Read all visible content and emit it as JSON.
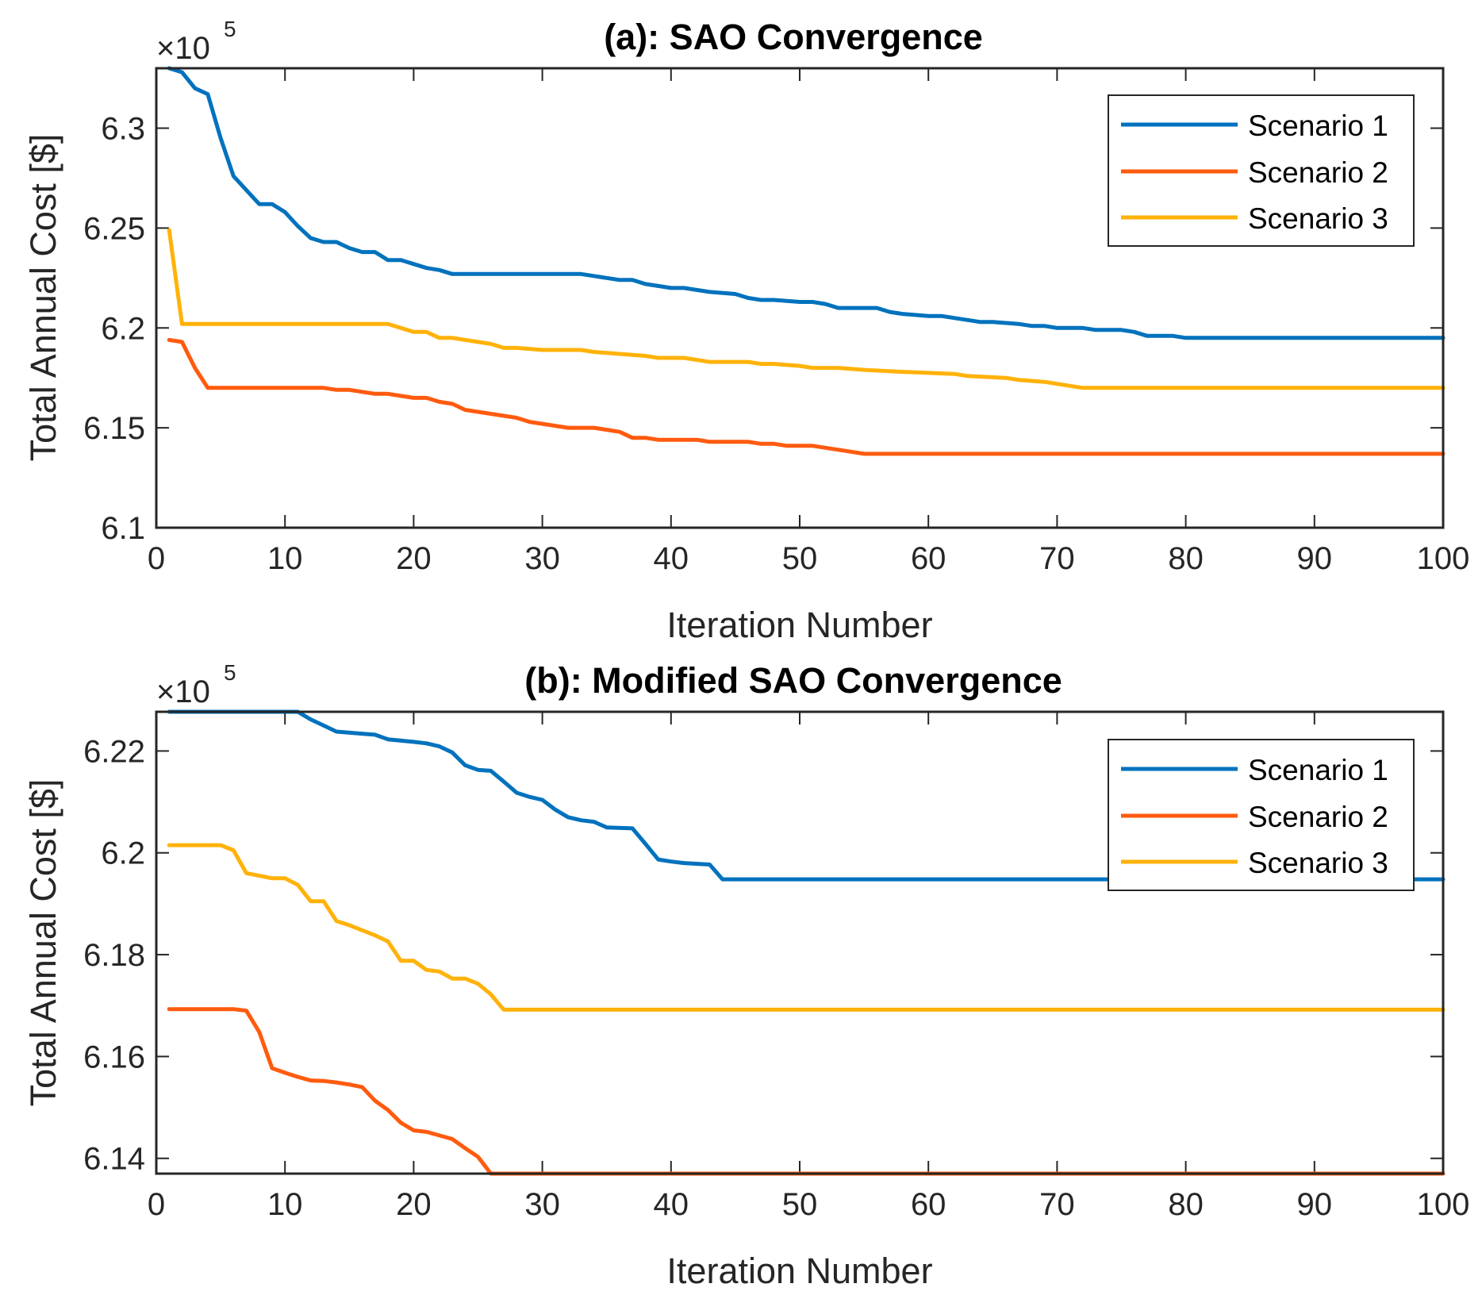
{
  "colors": {
    "scenario1": "#0072BD",
    "scenario2": "#FF5B0F",
    "scenario3": "#FFB20A",
    "axis": "#262626"
  },
  "chart_data": [
    {
      "type": "line",
      "title": "(a): SAO Convergence",
      "xlabel": "Iteration Number",
      "ylabel": "Total Annual Cost [$]",
      "exponent_base": "×10",
      "exponent_power": "5",
      "xlim": [
        0,
        100
      ],
      "ylim": [
        6.1,
        6.33
      ],
      "xticks": [
        0,
        10,
        20,
        30,
        40,
        50,
        60,
        70,
        80,
        90,
        100
      ],
      "xtick_labels": [
        "0",
        "10",
        "20",
        "30",
        "40",
        "50",
        "60",
        "70",
        "80",
        "90",
        "100"
      ],
      "yticks": [
        6.1,
        6.15,
        6.2,
        6.25,
        6.3
      ],
      "ytick_labels": [
        "6.1",
        "6.15",
        "6.2",
        "6.25",
        "6.3"
      ],
      "legend_location": "top-right",
      "series": [
        {
          "name": "Scenario 1",
          "color_key": "scenario1",
          "points": [
            [
              1,
              6.33
            ],
            [
              2,
              6.328
            ],
            [
              3,
              6.32
            ],
            [
              4,
              6.317
            ],
            [
              5,
              6.295
            ],
            [
              6,
              6.276
            ],
            [
              7,
              6.269
            ],
            [
              8,
              6.262
            ],
            [
              9,
              6.262
            ],
            [
              10,
              6.258
            ],
            [
              11,
              6.251
            ],
            [
              12,
              6.245
            ],
            [
              13,
              6.243
            ],
            [
              14,
              6.243
            ],
            [
              15,
              6.24
            ],
            [
              16,
              6.238
            ],
            [
              17,
              6.238
            ],
            [
              18,
              6.234
            ],
            [
              19,
              6.234
            ],
            [
              20,
              6.232
            ],
            [
              21,
              6.23
            ],
            [
              22,
              6.229
            ],
            [
              23,
              6.227
            ],
            [
              32,
              6.227
            ],
            [
              33,
              6.227
            ],
            [
              34,
              6.226
            ],
            [
              35,
              6.225
            ],
            [
              36,
              6.224
            ],
            [
              37,
              6.224
            ],
            [
              38,
              6.222
            ],
            [
              39,
              6.221
            ],
            [
              40,
              6.22
            ],
            [
              41,
              6.22
            ],
            [
              42,
              6.219
            ],
            [
              43,
              6.218
            ],
            [
              45,
              6.217
            ],
            [
              46,
              6.215
            ],
            [
              47,
              6.214
            ],
            [
              48,
              6.214
            ],
            [
              50,
              6.213
            ],
            [
              51,
              6.213
            ],
            [
              52,
              6.212
            ],
            [
              53,
              6.21
            ],
            [
              56,
              6.21
            ],
            [
              57,
              6.208
            ],
            [
              58,
              6.207
            ],
            [
              60,
              6.206
            ],
            [
              61,
              6.206
            ],
            [
              62,
              6.205
            ],
            [
              63,
              6.204
            ],
            [
              64,
              6.203
            ],
            [
              65,
              6.203
            ],
            [
              67,
              6.202
            ],
            [
              68,
              6.201
            ],
            [
              69,
              6.201
            ],
            [
              70,
              6.2
            ],
            [
              72,
              6.2
            ],
            [
              73,
              6.199
            ],
            [
              75,
              6.199
            ],
            [
              76,
              6.198
            ],
            [
              77,
              6.196
            ],
            [
              78,
              6.196
            ],
            [
              79,
              6.196
            ],
            [
              80,
              6.195
            ],
            [
              100,
              6.195
            ]
          ]
        },
        {
          "name": "Scenario 2",
          "color_key": "scenario2",
          "points": [
            [
              1,
              6.194
            ],
            [
              2,
              6.193
            ],
            [
              3,
              6.18
            ],
            [
              4,
              6.17
            ],
            [
              13,
              6.17
            ],
            [
              14,
              6.169
            ],
            [
              15,
              6.169
            ],
            [
              16,
              6.168
            ],
            [
              17,
              6.167
            ],
            [
              18,
              6.167
            ],
            [
              19,
              6.166
            ],
            [
              20,
              6.165
            ],
            [
              21,
              6.165
            ],
            [
              22,
              6.163
            ],
            [
              23,
              6.162
            ],
            [
              24,
              6.159
            ],
            [
              25,
              6.158
            ],
            [
              26,
              6.157
            ],
            [
              27,
              6.156
            ],
            [
              28,
              6.155
            ],
            [
              29,
              6.153
            ],
            [
              30,
              6.152
            ],
            [
              31,
              6.151
            ],
            [
              32,
              6.15
            ],
            [
              34,
              6.15
            ],
            [
              35,
              6.149
            ],
            [
              36,
              6.148
            ],
            [
              37,
              6.145
            ],
            [
              38,
              6.145
            ],
            [
              39,
              6.144
            ],
            [
              42,
              6.144
            ],
            [
              43,
              6.143
            ],
            [
              46,
              6.143
            ],
            [
              47,
              6.142
            ],
            [
              48,
              6.142
            ],
            [
              49,
              6.141
            ],
            [
              51,
              6.141
            ],
            [
              52,
              6.14
            ],
            [
              53,
              6.139
            ],
            [
              54,
              6.138
            ],
            [
              55,
              6.137
            ],
            [
              57,
              6.137
            ],
            [
              100,
              6.137
            ]
          ]
        },
        {
          "name": "Scenario 3",
          "color_key": "scenario3",
          "points": [
            [
              1,
              6.249
            ],
            [
              2,
              6.202
            ],
            [
              17,
              6.202
            ],
            [
              18,
              6.202
            ],
            [
              19,
              6.2
            ],
            [
              20,
              6.198
            ],
            [
              21,
              6.198
            ],
            [
              22,
              6.195
            ],
            [
              23,
              6.195
            ],
            [
              24,
              6.194
            ],
            [
              25,
              6.193
            ],
            [
              26,
              6.192
            ],
            [
              27,
              6.19
            ],
            [
              28,
              6.19
            ],
            [
              30,
              6.189
            ],
            [
              33,
              6.189
            ],
            [
              34,
              6.188
            ],
            [
              36,
              6.187
            ],
            [
              38,
              6.186
            ],
            [
              39,
              6.185
            ],
            [
              41,
              6.185
            ],
            [
              42,
              6.184
            ],
            [
              43,
              6.183
            ],
            [
              46,
              6.183
            ],
            [
              47,
              6.182
            ],
            [
              48,
              6.182
            ],
            [
              50,
              6.181
            ],
            [
              51,
              6.18
            ],
            [
              53,
              6.18
            ],
            [
              55,
              6.179
            ],
            [
              58,
              6.178
            ],
            [
              62,
              6.177
            ],
            [
              63,
              6.176
            ],
            [
              66,
              6.175
            ],
            [
              67,
              6.174
            ],
            [
              69,
              6.173
            ],
            [
              70,
              6.172
            ],
            [
              71,
              6.171
            ],
            [
              72,
              6.17
            ],
            [
              100,
              6.17
            ]
          ]
        }
      ]
    },
    {
      "type": "line",
      "title": "(b): Modified SAO Convergence",
      "xlabel": "Iteration Number",
      "ylabel": "Total Annual Cost [$]",
      "exponent_base": "×10",
      "exponent_power": "5",
      "xlim": [
        0,
        100
      ],
      "ylim": [
        6.137,
        6.2277
      ],
      "xticks": [
        0,
        10,
        20,
        30,
        40,
        50,
        60,
        70,
        80,
        90,
        100
      ],
      "xtick_labels": [
        "0",
        "10",
        "20",
        "30",
        "40",
        "50",
        "60",
        "70",
        "80",
        "90",
        "100"
      ],
      "yticks": [
        6.14,
        6.16,
        6.18,
        6.2,
        6.22
      ],
      "ytick_labels": [
        "6.14",
        "6.16",
        "6.18",
        "6.2",
        "6.22"
      ],
      "legend_location": "top-right",
      "series": [
        {
          "name": "Scenario 1",
          "color_key": "scenario1",
          "points": [
            [
              1,
              6.2277
            ],
            [
              10,
              6.2277
            ],
            [
              11,
              6.2277
            ],
            [
              12,
              6.2262
            ],
            [
              13,
              6.225
            ],
            [
              14,
              6.2238
            ],
            [
              16,
              6.2234
            ],
            [
              17,
              6.2232
            ],
            [
              18,
              6.2223
            ],
            [
              20,
              6.2218
            ],
            [
              21,
              6.2215
            ],
            [
              22,
              6.2209
            ],
            [
              23,
              6.2197
            ],
            [
              24,
              6.2172
            ],
            [
              25,
              6.2163
            ],
            [
              26,
              6.2161
            ],
            [
              27,
              6.214
            ],
            [
              28,
              6.2118
            ],
            [
              29,
              6.211
            ],
            [
              30,
              6.2104
            ],
            [
              31,
              6.2085
            ],
            [
              32,
              6.207
            ],
            [
              33,
              6.2064
            ],
            [
              34,
              6.2061
            ],
            [
              35,
              6.205
            ],
            [
              37,
              6.2048
            ],
            [
              38,
              6.2018
            ],
            [
              39,
              6.1987
            ],
            [
              40,
              6.1983
            ],
            [
              41,
              6.198
            ],
            [
              43,
              6.1977
            ],
            [
              44,
              6.1948
            ],
            [
              100,
              6.1948
            ]
          ]
        },
        {
          "name": "Scenario 2",
          "color_key": "scenario2",
          "points": [
            [
              1,
              6.1693
            ],
            [
              6,
              6.1693
            ],
            [
              7,
              6.169
            ],
            [
              8,
              6.1648
            ],
            [
              9,
              6.1577
            ],
            [
              10,
              6.1568
            ],
            [
              11,
              6.156
            ],
            [
              12,
              6.1553
            ],
            [
              13,
              6.1552
            ],
            [
              14,
              6.1549
            ],
            [
              15,
              6.1545
            ],
            [
              16,
              6.154
            ],
            [
              17,
              6.1513
            ],
            [
              18,
              6.1495
            ],
            [
              19,
              6.147
            ],
            [
              20,
              6.1455
            ],
            [
              21,
              6.1452
            ],
            [
              22,
              6.1445
            ],
            [
              23,
              6.1438
            ],
            [
              24,
              6.142
            ],
            [
              25,
              6.1403
            ],
            [
              26,
              6.137
            ],
            [
              100,
              6.137
            ]
          ]
        },
        {
          "name": "Scenario 3",
          "color_key": "scenario3",
          "points": [
            [
              1,
              6.2015
            ],
            [
              5,
              6.2015
            ],
            [
              6,
              6.2005
            ],
            [
              7,
              6.196
            ],
            [
              8,
              6.1955
            ],
            [
              9,
              6.195
            ],
            [
              10,
              6.195
            ],
            [
              11,
              6.1937
            ],
            [
              12,
              6.1905
            ],
            [
              13,
              6.1905
            ],
            [
              14,
              6.1866
            ],
            [
              15,
              6.1858
            ],
            [
              16,
              6.1848
            ],
            [
              17,
              6.1838
            ],
            [
              18,
              6.1826
            ],
            [
              19,
              6.1788
            ],
            [
              20,
              6.1788
            ],
            [
              21,
              6.177
            ],
            [
              22,
              6.1767
            ],
            [
              23,
              6.1753
            ],
            [
              24,
              6.1753
            ],
            [
              25,
              6.1743
            ],
            [
              26,
              6.1722
            ],
            [
              27,
              6.1692
            ],
            [
              100,
              6.1692
            ]
          ]
        }
      ]
    }
  ]
}
